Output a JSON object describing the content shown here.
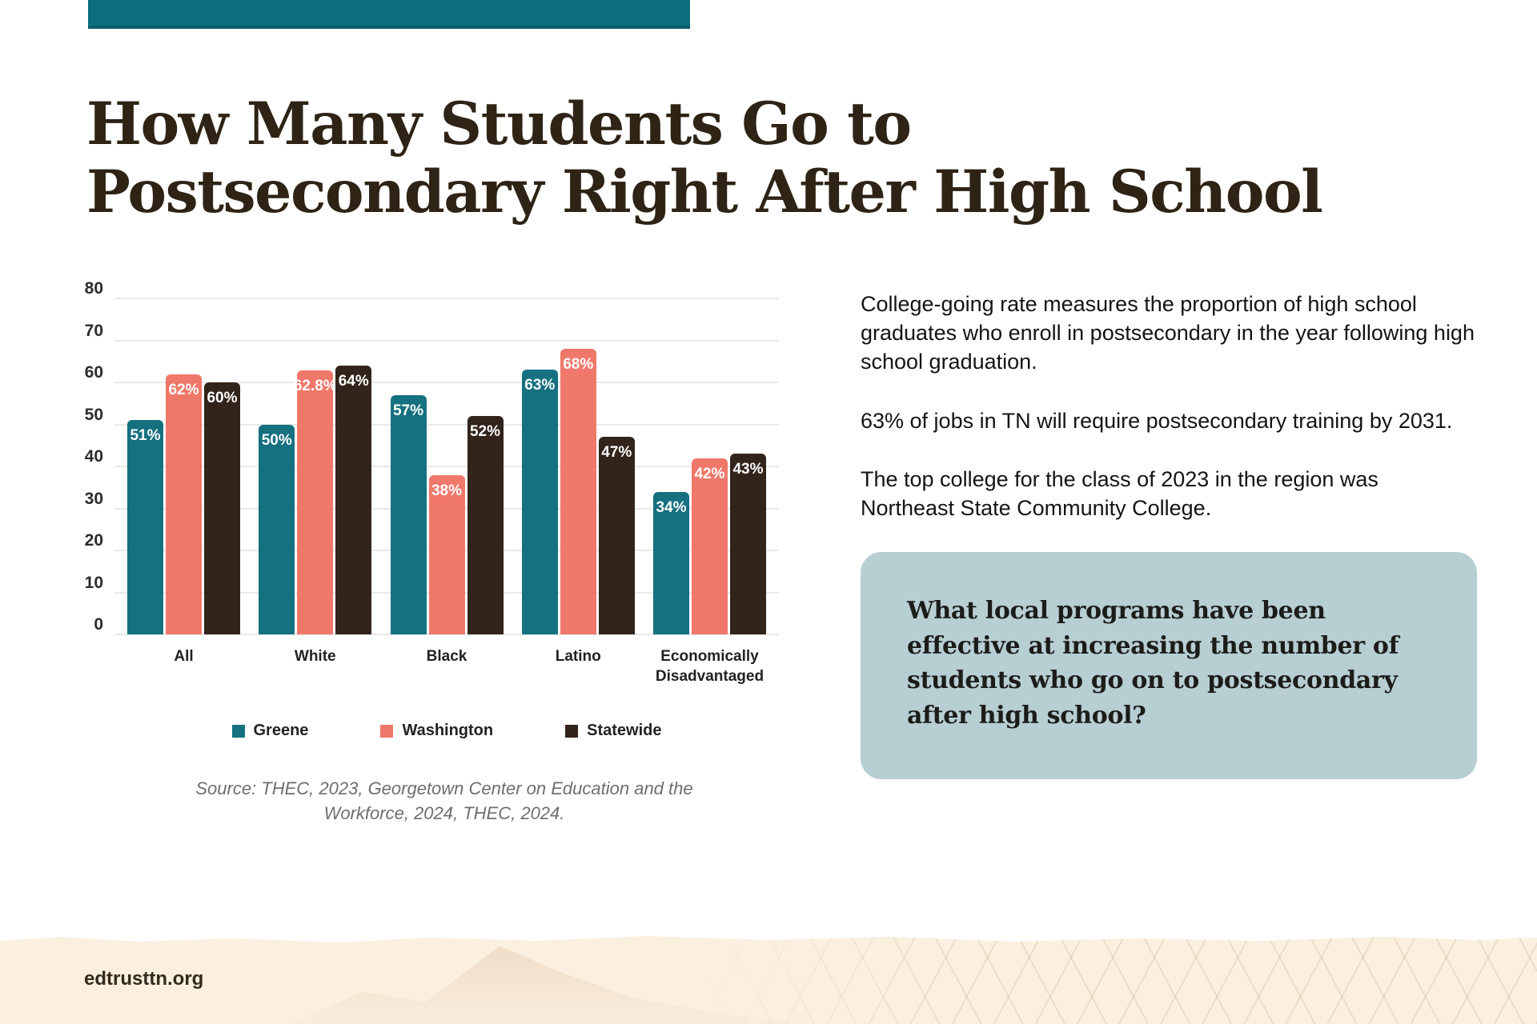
{
  "header": {
    "accent_color": "#0d6e7d"
  },
  "title": {
    "line1": "How Many Students Go to",
    "line2": "Postsecondary Right After High School"
  },
  "chart_data": {
    "type": "bar",
    "categories": [
      "All",
      "White",
      "Black",
      "Latino",
      "Economically Disadvantaged"
    ],
    "series": [
      {
        "name": "Greene",
        "color": "#15707f",
        "values": [
          51,
          50,
          57,
          63,
          34
        ],
        "labels": [
          "51%",
          "50%",
          "57%",
          "63%",
          "34%"
        ]
      },
      {
        "name": "Washington",
        "color": "#f0786a",
        "values": [
          62,
          62.8,
          38,
          68,
          42
        ],
        "labels": [
          "62%",
          "62.8%",
          "38%",
          "68%",
          "42%"
        ]
      },
      {
        "name": "Statewide",
        "color": "#32231b",
        "values": [
          60,
          64,
          52,
          47,
          43
        ],
        "labels": [
          "60%",
          "64%",
          "52%",
          "47%",
          "43%"
        ]
      }
    ],
    "ylim": [
      0,
      80
    ],
    "yticks": [
      0,
      10,
      20,
      30,
      40,
      50,
      60,
      70,
      80
    ],
    "grid": true,
    "legend_position": "bottom",
    "source": "Source: THEC, 2023, Georgetown Center on Education and the Workforce, 2024, THEC, 2024."
  },
  "right_column": {
    "paragraphs": [
      "College-going rate measures the proportion of high school graduates who enroll in postsecondary in the year following high school graduation.",
      "63% of jobs in TN will require postsecondary training by 2031.",
      "The top college for the class of 2023 in the region was Northeast State Community College."
    ],
    "callout": "What local programs have been effective at increasing the number of students who go on to postsecondary after high school?",
    "callout_bg_color": "#b7ced3"
  },
  "footer": {
    "url": "edtrusttn.org"
  }
}
